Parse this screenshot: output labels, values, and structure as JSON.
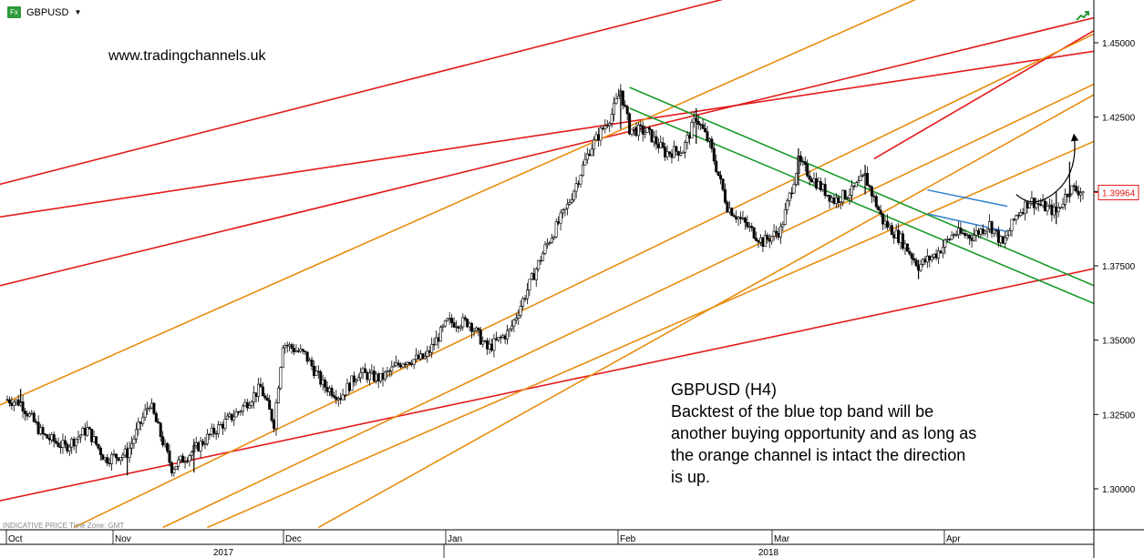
{
  "header": {
    "badge": "Fx",
    "symbol": "GBPUSD"
  },
  "watermark": "www.tradingchannels.uk",
  "annotation": {
    "title": "GBPUSD (H4)",
    "lines": [
      "Backtest of the blue top band will be",
      "another buying opportunity and as long as",
      "the orange channel is intact the direction",
      "is up."
    ]
  },
  "footer_note": "INDICATIVE PRICE   Time Zone: GMT",
  "current_price_label": "1.39964",
  "chart_data": {
    "type": "candlestick",
    "title": "",
    "ylim": [
      1.28625,
      1.46125
    ],
    "yticks": [
      1.3,
      1.325,
      1.35,
      1.375,
      1.4,
      1.425,
      1.45
    ],
    "ytick_labels": [
      "1.30000",
      "1.32500",
      "1.35000",
      "1.37500",
      "1.40000",
      "1.42500",
      "1.45000"
    ],
    "months": [
      "Oct",
      "Nov",
      "Dec",
      "Jan",
      "Feb",
      "Mar",
      "Apr"
    ],
    "years": [
      "2017",
      "2018"
    ],
    "current_price": 1.39964,
    "grid": false,
    "price_path": [
      [
        0,
        1.33
      ],
      [
        3,
        1.329
      ],
      [
        8,
        1.318
      ],
      [
        13,
        1.314
      ],
      [
        18,
        1.32
      ],
      [
        22,
        1.31
      ],
      [
        27,
        1.312
      ],
      [
        32,
        1.329
      ],
      [
        37,
        1.307
      ],
      [
        42,
        1.313
      ],
      [
        47,
        1.32
      ],
      [
        52,
        1.326
      ],
      [
        57,
        1.334
      ],
      [
        60,
        1.322
      ],
      [
        62,
        1.349
      ],
      [
        67,
        1.345
      ],
      [
        71,
        1.335
      ],
      [
        75,
        1.331
      ],
      [
        79,
        1.339
      ],
      [
        84,
        1.337
      ],
      [
        89,
        1.343
      ],
      [
        94,
        1.344
      ],
      [
        99,
        1.356
      ],
      [
        104,
        1.356
      ],
      [
        108,
        1.347
      ],
      [
        113,
        1.353
      ],
      [
        117,
        1.367
      ],
      [
        121,
        1.381
      ],
      [
        126,
        1.395
      ],
      [
        131,
        1.414
      ],
      [
        136,
        1.426
      ],
      [
        138,
        1.434
      ],
      [
        140,
        1.421
      ],
      [
        144,
        1.42
      ],
      [
        148,
        1.413
      ],
      [
        152,
        1.414
      ],
      [
        155,
        1.425
      ],
      [
        158,
        1.416
      ],
      [
        162,
        1.395
      ],
      [
        166,
        1.389
      ],
      [
        170,
        1.383
      ],
      [
        174,
        1.387
      ],
      [
        178,
        1.41
      ],
      [
        182,
        1.403
      ],
      [
        186,
        1.397
      ],
      [
        190,
        1.4
      ],
      [
        193,
        1.405
      ],
      [
        197,
        1.39
      ],
      [
        201,
        1.384
      ],
      [
        205,
        1.375
      ],
      [
        209,
        1.379
      ],
      [
        213,
        1.386
      ],
      [
        217,
        1.385
      ],
      [
        221,
        1.389
      ],
      [
        224,
        1.382
      ],
      [
        227,
        1.392
      ],
      [
        230,
        1.397
      ],
      [
        233,
        1.395
      ],
      [
        236,
        1.393
      ],
      [
        239,
        1.401
      ],
      [
        242,
        1.4
      ]
    ],
    "bars": [
      {
        "x": 3,
        "high": 1.3336,
        "low": 1.3288
      },
      {
        "x": 27,
        "high": 1.314,
        "low": 1.3045
      },
      {
        "x": 42,
        "high": 1.316,
        "low": 1.3055
      },
      {
        "x": 138,
        "high": 1.4345,
        "low": 1.421
      },
      {
        "x": 155,
        "high": 1.428,
        "low": 1.416
      },
      {
        "x": 178,
        "high": 1.4145,
        "low": 1.402
      },
      {
        "x": 193,
        "high": 1.409,
        "low": 1.399
      },
      {
        "x": 205,
        "high": 1.377,
        "low": 1.3705
      },
      {
        "x": 236,
        "high": 1.4,
        "low": 1.389
      },
      {
        "x": 239,
        "high": 1.41,
        "low": 1.398
      }
    ],
    "trendlines": [
      {
        "color": "red",
        "x1": -8,
        "y1": 1.39,
        "x2": 257,
        "y2": 1.45
      },
      {
        "color": "red",
        "x1": -8,
        "y1": 1.366,
        "x2": 257,
        "y2": 1.463
      },
      {
        "color": "red",
        "x1": -8,
        "y1": 1.294,
        "x2": 257,
        "y2": 1.378
      },
      {
        "color": "red",
        "x1": -8,
        "y1": 1.4,
        "x2": 162,
        "y2": 1.465
      },
      {
        "color": "red",
        "x1": 195,
        "y1": 1.411,
        "x2": 257,
        "y2": 1.465
      },
      {
        "color": "orange",
        "x1": -8,
        "y1": 1.324,
        "x2": 205,
        "y2": 1.465
      },
      {
        "color": "orange",
        "x1": 15,
        "y1": 1.287,
        "x2": 257,
        "y2": 1.462
      },
      {
        "color": "orange",
        "x1": 35,
        "y1": 1.287,
        "x2": 257,
        "y2": 1.445
      },
      {
        "color": "orange",
        "x1": 45,
        "y1": 1.287,
        "x2": 257,
        "y2": 1.425
      },
      {
        "color": "orange",
        "x1": 70,
        "y1": 1.287,
        "x2": 257,
        "y2": 1.443
      },
      {
        "color": "green",
        "x1": 140,
        "y1": 1.435,
        "x2": 245,
        "y2": 1.368
      },
      {
        "color": "green",
        "x1": 140,
        "y1": 1.428,
        "x2": 245,
        "y2": 1.362
      },
      {
        "color": "blue",
        "x1": 207,
        "y1": 1.4005,
        "x2": 225,
        "y2": 1.395
      },
      {
        "color": "blue",
        "x1": 207,
        "y1": 1.3925,
        "x2": 225,
        "y2": 1.3865
      }
    ],
    "projection": [
      [
        227,
        1.399
      ],
      [
        231,
        1.396
      ],
      [
        236,
        1.4
      ],
      [
        240,
        1.419
      ]
    ]
  }
}
